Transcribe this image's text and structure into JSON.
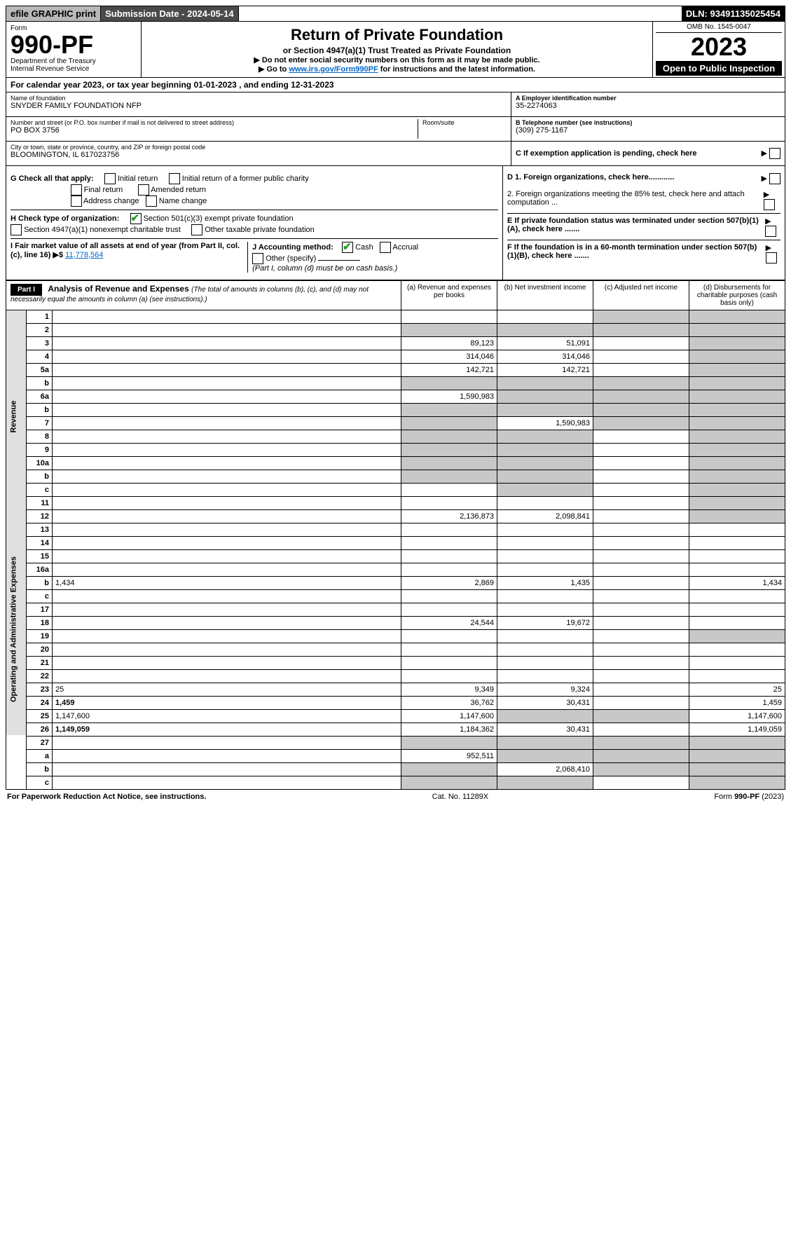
{
  "topbar": {
    "efile": "efile GRAPHIC print",
    "submission": "Submission Date - 2024-05-14",
    "dln": "DLN: 93491135025454"
  },
  "header": {
    "form_label": "Form",
    "form_number": "990-PF",
    "dept": "Department of the Treasury",
    "irs": "Internal Revenue Service",
    "title": "Return of Private Foundation",
    "subtitle": "or Section 4947(a)(1) Trust Treated as Private Foundation",
    "instr1": "▶ Do not enter social security numbers on this form as it may be made public.",
    "instr2_prefix": "▶ Go to ",
    "instr2_link": "www.irs.gov/Form990PF",
    "instr2_suffix": " for instructions and the latest information.",
    "omb": "OMB No. 1545-0047",
    "year": "2023",
    "open": "Open to Public Inspection"
  },
  "calyear": "For calendar year 2023, or tax year beginning 01-01-2023                          , and ending 12-31-2023",
  "info": {
    "name_lbl": "Name of foundation",
    "name_val": "SNYDER FAMILY FOUNDATION NFP",
    "addr_lbl": "Number and street (or P.O. box number if mail is not delivered to street address)",
    "addr_val": "PO BOX 3756",
    "room_lbl": "Room/suite",
    "city_lbl": "City or town, state or province, country, and ZIP or foreign postal code",
    "city_val": "BLOOMINGTON, IL  617023756",
    "ein_lbl": "A Employer identification number",
    "ein_val": "35-2274063",
    "tel_lbl": "B Telephone number (see instructions)",
    "tel_val": "(309) 275-1167",
    "c_lbl": "C If exemption application is pending, check here"
  },
  "g": {
    "label": "G Check all that apply:",
    "initial": "Initial return",
    "final": "Final return",
    "addr_change": "Address change",
    "initial_former": "Initial return of a former public charity",
    "amended": "Amended return",
    "name_change": "Name change"
  },
  "h": {
    "label": "H Check type of organization:",
    "opt1": "Section 501(c)(3) exempt private foundation",
    "opt2": "Section 4947(a)(1) nonexempt charitable trust",
    "opt3": "Other taxable private foundation"
  },
  "i": {
    "label": "I Fair market value of all assets at end of year (from Part II, col. (c), line 16) ▶$ ",
    "value": "11,778,564"
  },
  "j": {
    "label": "J Accounting method:",
    "cash": "Cash",
    "accrual": "Accrual",
    "other": "Other (specify)",
    "note": "(Part I, column (d) must be on cash basis.)"
  },
  "d": {
    "d1": "D 1. Foreign organizations, check here............",
    "d2": "2. Foreign organizations meeting the 85% test, check here and attach computation ...",
    "e": "E  If private foundation status was terminated under section 507(b)(1)(A), check here .......",
    "f": "F  If the foundation is in a 60-month termination under section 507(b)(1)(B), check here ......."
  },
  "part1_label": "Part I",
  "analysis": {
    "title": "Analysis of Revenue and Expenses ",
    "note": "(The total of amounts in columns (b), (c), and (d) may not necessarily equal the amounts in column (a) (see instructions).)",
    "col_a": "(a)   Revenue and expenses per books",
    "col_b": "(b)   Net investment income",
    "col_c": "(c)   Adjusted net income",
    "col_d": "(d)   Disbursements for charitable purposes (cash basis only)"
  },
  "sidelabels": {
    "revenue": "Revenue",
    "expenses": "Operating and Administrative Expenses"
  },
  "rows": [
    {
      "n": "1",
      "d": "",
      "a": "",
      "b": "",
      "c": "",
      "shade": [
        "c",
        "d"
      ]
    },
    {
      "n": "2",
      "d": "",
      "a": "",
      "b": "",
      "c": "",
      "shade": [
        "a",
        "b",
        "c",
        "d"
      ]
    },
    {
      "n": "3",
      "d": "",
      "a": "89,123",
      "b": "51,091",
      "c": "",
      "shade": [
        "d"
      ]
    },
    {
      "n": "4",
      "d": "",
      "a": "314,046",
      "b": "314,046",
      "c": "",
      "shade": [
        "d"
      ]
    },
    {
      "n": "5a",
      "d": "",
      "a": "142,721",
      "b": "142,721",
      "c": "",
      "shade": [
        "d"
      ]
    },
    {
      "n": "b",
      "d": "",
      "a": "",
      "b": "",
      "c": "",
      "shade": [
        "a",
        "b",
        "c",
        "d"
      ]
    },
    {
      "n": "6a",
      "d": "",
      "a": "1,590,983",
      "b": "",
      "c": "",
      "shade": [
        "b",
        "c",
        "d"
      ]
    },
    {
      "n": "b",
      "d": "",
      "a": "",
      "b": "",
      "c": "",
      "shade": [
        "a",
        "b",
        "c",
        "d"
      ]
    },
    {
      "n": "7",
      "d": "",
      "a": "",
      "b": "1,590,983",
      "c": "",
      "shade": [
        "a",
        "c",
        "d"
      ]
    },
    {
      "n": "8",
      "d": "",
      "a": "",
      "b": "",
      "c": "",
      "shade": [
        "a",
        "b",
        "d"
      ]
    },
    {
      "n": "9",
      "d": "",
      "a": "",
      "b": "",
      "c": "",
      "shade": [
        "a",
        "b",
        "d"
      ]
    },
    {
      "n": "10a",
      "d": "",
      "a": "",
      "b": "",
      "c": "",
      "shade": [
        "a",
        "b",
        "d"
      ]
    },
    {
      "n": "b",
      "d": "",
      "a": "",
      "b": "",
      "c": "",
      "shade": [
        "a",
        "b",
        "d"
      ]
    },
    {
      "n": "c",
      "d": "",
      "a": "",
      "b": "",
      "c": "",
      "shade": [
        "b",
        "d"
      ]
    },
    {
      "n": "11",
      "d": "",
      "a": "",
      "b": "",
      "c": "",
      "shade": [
        "d"
      ]
    },
    {
      "n": "12",
      "d": "",
      "a": "2,136,873",
      "b": "2,098,841",
      "c": "",
      "shade": [
        "d"
      ],
      "bold": true
    }
  ],
  "rows2": [
    {
      "n": "13",
      "d": "",
      "a": "",
      "b": "",
      "c": ""
    },
    {
      "n": "14",
      "d": "",
      "a": "",
      "b": "",
      "c": ""
    },
    {
      "n": "15",
      "d": "",
      "a": "",
      "b": "",
      "c": ""
    },
    {
      "n": "16a",
      "d": "",
      "a": "",
      "b": "",
      "c": ""
    },
    {
      "n": "b",
      "d": "1,434",
      "a": "2,869",
      "b": "1,435",
      "c": ""
    },
    {
      "n": "c",
      "d": "",
      "a": "",
      "b": "",
      "c": ""
    },
    {
      "n": "17",
      "d": "",
      "a": "",
      "b": "",
      "c": ""
    },
    {
      "n": "18",
      "d": "",
      "a": "24,544",
      "b": "19,672",
      "c": ""
    },
    {
      "n": "19",
      "d": "",
      "a": "",
      "b": "",
      "c": "",
      "shade": [
        "d"
      ]
    },
    {
      "n": "20",
      "d": "",
      "a": "",
      "b": "",
      "c": ""
    },
    {
      "n": "21",
      "d": "",
      "a": "",
      "b": "",
      "c": ""
    },
    {
      "n": "22",
      "d": "",
      "a": "",
      "b": "",
      "c": ""
    },
    {
      "n": "23",
      "d": "25",
      "a": "9,349",
      "b": "9,324",
      "c": ""
    },
    {
      "n": "24",
      "d": "1,459",
      "a": "36,762",
      "b": "30,431",
      "c": "",
      "bold": true
    },
    {
      "n": "25",
      "d": "1,147,600",
      "a": "1,147,600",
      "b": "",
      "c": "",
      "shade": [
        "b",
        "c"
      ]
    },
    {
      "n": "26",
      "d": "1,149,059",
      "a": "1,184,362",
      "b": "30,431",
      "c": "",
      "bold": true
    }
  ],
  "rows3": [
    {
      "n": "27",
      "d": "",
      "a": "",
      "b": "",
      "c": "",
      "shade": [
        "a",
        "b",
        "c",
        "d"
      ]
    },
    {
      "n": "a",
      "d": "",
      "a": "952,511",
      "b": "",
      "c": "",
      "shade": [
        "b",
        "c",
        "d"
      ],
      "bold": true
    },
    {
      "n": "b",
      "d": "",
      "a": "",
      "b": "2,068,410",
      "c": "",
      "shade": [
        "a",
        "c",
        "d"
      ],
      "bold": true
    },
    {
      "n": "c",
      "d": "",
      "a": "",
      "b": "",
      "c": "",
      "shade": [
        "a",
        "b",
        "d"
      ],
      "bold": true
    }
  ],
  "footer": {
    "left": "For Paperwork Reduction Act Notice, see instructions.",
    "mid": "Cat. No. 11289X",
    "right": "Form 990-PF (2023)"
  }
}
